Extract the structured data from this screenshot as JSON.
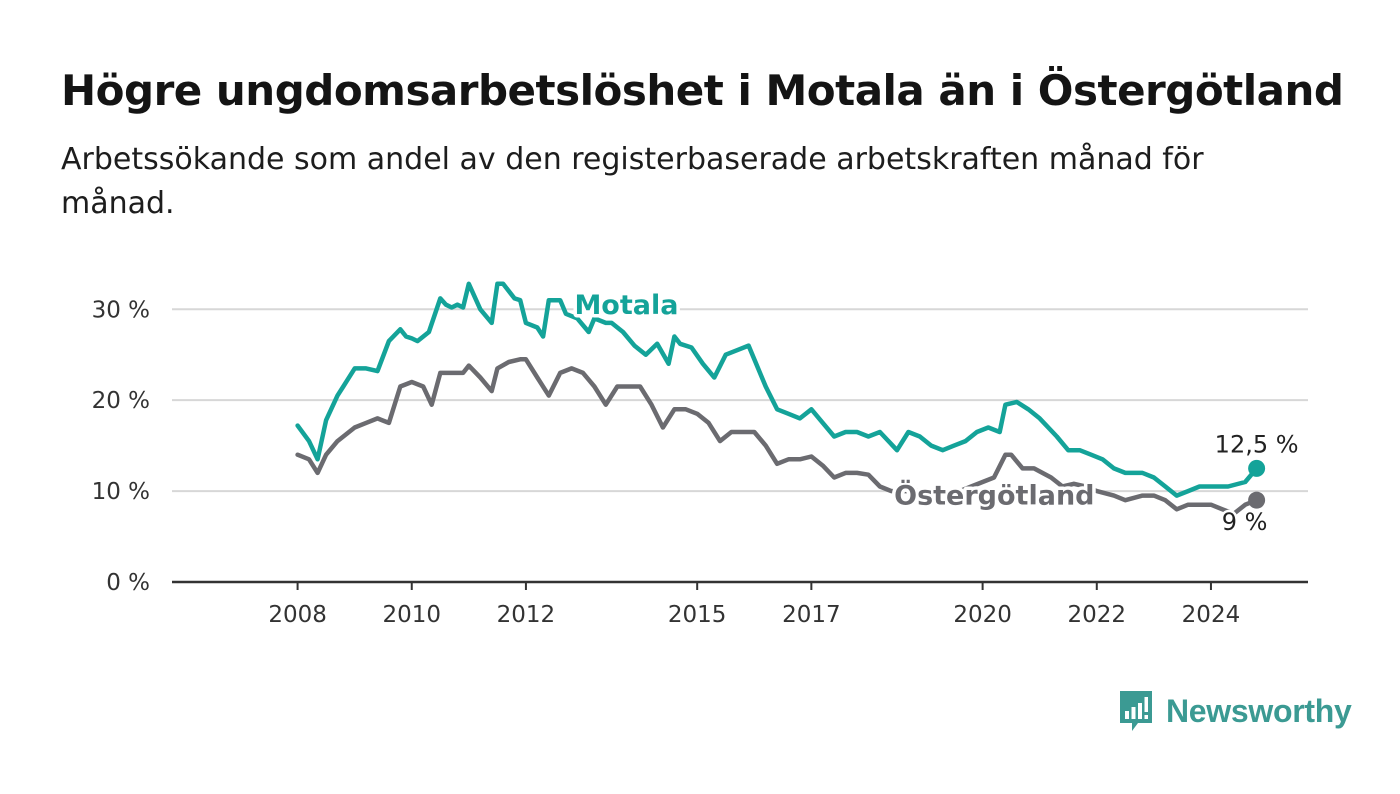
{
  "header": {
    "title": "Högre ungdomsarbetslöshet i Motala än i Östergötland",
    "subtitle": "Arbetssökande som andel av den registerbaserade arbetskraften månad för månad."
  },
  "brand": {
    "name": "Newsworthy",
    "icon": "newsworthy-logo-icon",
    "color": "#3b9a93"
  },
  "chart_data": {
    "type": "line",
    "title": "Högre ungdomsarbetslöshet i Motala än i Östergötland",
    "subtitle": "Arbetssökande som andel av den registerbaserade arbetskraften månad för månad.",
    "x_ticks": [
      {
        "label": "2008",
        "value": 2008.0
      },
      {
        "label": "2010",
        "value": 2010.0
      },
      {
        "label": "2012",
        "value": 2012.0
      },
      {
        "label": "2015",
        "value": 2015.0
      },
      {
        "label": "2017",
        "value": 2017.0
      },
      {
        "label": "2020",
        "value": 2020.0
      },
      {
        "label": "2022",
        "value": 2022.0
      },
      {
        "label": "2024",
        "value": 2024.0
      }
    ],
    "y_ticks": [
      {
        "label": "0 %",
        "value": 0
      },
      {
        "label": "10 %",
        "value": 10
      },
      {
        "label": "20 %",
        "value": 20
      },
      {
        "label": "30 %",
        "value": 30
      }
    ],
    "xlim": [
      2005.8,
      2025.7
    ],
    "ylim": [
      0,
      33
    ],
    "grid": true,
    "series": [
      {
        "name": "Motala",
        "color": "#14a399",
        "end_label": "12,5 %",
        "x": [
          2008.0,
          2008.2,
          2008.35,
          2008.5,
          2008.7,
          2008.8,
          2009.0,
          2009.2,
          2009.4,
          2009.6,
          2009.8,
          2009.9,
          2010.0,
          2010.1,
          2010.3,
          2010.5,
          2010.6,
          2010.7,
          2010.8,
          2010.9,
          2011.0,
          2011.2,
          2011.4,
          2011.5,
          2011.6,
          2011.8,
          2011.9,
          2012.0,
          2012.2,
          2012.3,
          2012.4,
          2012.6,
          2012.7,
          2012.9,
          2013.1,
          2013.2,
          2013.4,
          2013.5,
          2013.7,
          2013.9,
          2014.1,
          2014.3,
          2014.5,
          2014.6,
          2014.7,
          2014.9,
          2015.1,
          2015.3,
          2015.5,
          2015.7,
          2015.9,
          2016.0,
          2016.2,
          2016.4,
          2016.6,
          2016.8,
          2017.0,
          2017.2,
          2017.4,
          2017.6,
          2017.8,
          2018.0,
          2018.2,
          2018.5,
          2018.7,
          2018.9,
          2019.1,
          2019.3,
          2019.5,
          2019.7,
          2019.9,
          2020.1,
          2020.3,
          2020.4,
          2020.6,
          2020.8,
          2021.0,
          2021.3,
          2021.5,
          2021.7,
          2021.9,
          2022.1,
          2022.3,
          2022.5,
          2022.8,
          2023.0,
          2023.2,
          2023.4,
          2023.6,
          2023.8,
          2024.0,
          2024.3,
          2024.6,
          2024.8
        ],
        "y": [
          17.2,
          15.5,
          13.5,
          17.8,
          20.5,
          21.5,
          23.5,
          23.5,
          23.2,
          26.5,
          27.8,
          27.0,
          26.8,
          26.5,
          27.5,
          31.2,
          30.5,
          30.2,
          30.5,
          30.2,
          32.8,
          30.0,
          28.5,
          32.8,
          32.8,
          31.2,
          31.0,
          28.5,
          28.0,
          27.0,
          31.0,
          31.0,
          29.5,
          29.0,
          27.5,
          29.0,
          28.5,
          28.5,
          27.5,
          26.0,
          25.0,
          26.2,
          24.0,
          27.0,
          26.2,
          25.8,
          24.0,
          22.5,
          25.0,
          25.5,
          26.0,
          24.5,
          21.5,
          19.0,
          18.5,
          18.0,
          19.0,
          17.5,
          16.0,
          16.5,
          16.5,
          16.0,
          16.5,
          14.5,
          16.5,
          16.0,
          15.0,
          14.5,
          15.0,
          15.5,
          16.5,
          17.0,
          16.5,
          19.5,
          19.8,
          19.0,
          18.0,
          16.0,
          14.5,
          14.5,
          14.0,
          13.5,
          12.5,
          12.0,
          12.0,
          11.5,
          10.5,
          9.5,
          10.0,
          10.5,
          10.5,
          10.5,
          11.0,
          12.5
        ]
      },
      {
        "name": "Östergötland",
        "color": "#6b6b70",
        "end_label": "9 %",
        "x": [
          2008.0,
          2008.2,
          2008.35,
          2008.5,
          2008.7,
          2008.9,
          2009.0,
          2009.2,
          2009.4,
          2009.6,
          2009.8,
          2010.0,
          2010.2,
          2010.35,
          2010.5,
          2010.7,
          2010.9,
          2011.0,
          2011.2,
          2011.4,
          2011.5,
          2011.7,
          2011.9,
          2012.0,
          2012.2,
          2012.4,
          2012.6,
          2012.8,
          2013.0,
          2013.2,
          2013.4,
          2013.6,
          2013.8,
          2014.0,
          2014.2,
          2014.4,
          2014.6,
          2014.8,
          2015.0,
          2015.2,
          2015.4,
          2015.6,
          2015.8,
          2016.0,
          2016.2,
          2016.4,
          2016.6,
          2016.8,
          2017.0,
          2017.2,
          2017.4,
          2017.6,
          2017.8,
          2018.0,
          2018.2,
          2018.4,
          2018.6,
          2018.8,
          2019.0,
          2019.2,
          2019.4,
          2019.6,
          2019.8,
          2020.0,
          2020.2,
          2020.4,
          2020.5,
          2020.7,
          2020.9,
          2021.2,
          2021.4,
          2021.6,
          2021.8,
          2022.0,
          2022.3,
          2022.5,
          2022.8,
          2023.0,
          2023.2,
          2023.4,
          2023.6,
          2023.8,
          2024.0,
          2024.2,
          2024.4,
          2024.6,
          2024.8
        ],
        "y": [
          14.0,
          13.5,
          12.0,
          14.0,
          15.5,
          16.5,
          17.0,
          17.5,
          18.0,
          17.5,
          21.5,
          22.0,
          21.5,
          19.5,
          23.0,
          23.0,
          23.0,
          23.8,
          22.5,
          21.0,
          23.5,
          24.2,
          24.5,
          24.5,
          22.5,
          20.5,
          23.0,
          23.5,
          23.0,
          21.5,
          19.5,
          21.5,
          21.5,
          21.5,
          19.5,
          17.0,
          19.0,
          19.0,
          18.5,
          17.5,
          15.5,
          16.5,
          16.5,
          16.5,
          15.0,
          13.0,
          13.5,
          13.5,
          13.8,
          12.8,
          11.5,
          12.0,
          12.0,
          11.8,
          10.5,
          10.0,
          10.0,
          10.0,
          10.2,
          10.0,
          10.0,
          10.0,
          10.5,
          11.0,
          11.5,
          14.0,
          14.0,
          12.5,
          12.5,
          11.5,
          10.5,
          10.8,
          10.5,
          10.0,
          9.5,
          9.0,
          9.5,
          9.5,
          9.0,
          8.0,
          8.5,
          8.5,
          8.5,
          8.0,
          7.5,
          8.5,
          9.0
        ]
      }
    ]
  }
}
